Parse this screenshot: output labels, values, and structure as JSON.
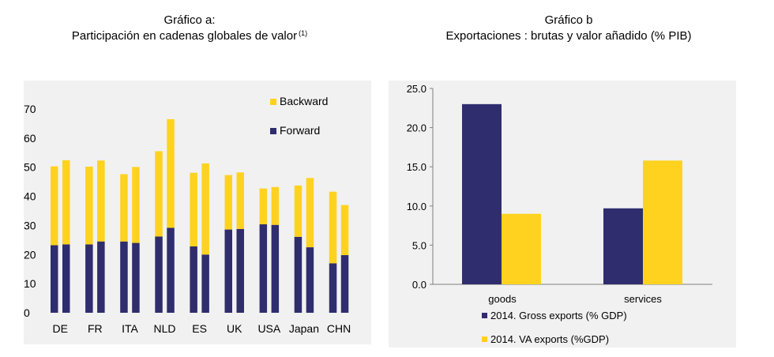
{
  "chart_a": {
    "title_line1": "Gráfico a:",
    "title_line2": "Participación en cadenas globales de valor",
    "title_note": "(1)"
  },
  "chart_b": {
    "title_line1": "Gráfico b",
    "title_line2": "Exportaciones : brutas y valor añadido (% PIB)"
  },
  "chart_data": [
    {
      "type": "bar",
      "stacked": true,
      "categories": [
        "DE",
        "FR",
        "ITA",
        "NLD",
        "ES",
        "UK",
        "USA",
        "Japan",
        "CHN"
      ],
      "bars_per_category": 2,
      "series": [
        {
          "name": "Forward",
          "color": "#2f2d6e",
          "values": [
            [
              23.2,
              23.5
            ],
            [
              23.5,
              24.5
            ],
            [
              24.5,
              24
            ],
            [
              26.2,
              29.2
            ],
            [
              22.8,
              20
            ],
            [
              28.6,
              28.8
            ],
            [
              30.4,
              30.2
            ],
            [
              26.1,
              22.5
            ],
            [
              17,
              19.8
            ]
          ]
        },
        {
          "name": "Backward",
          "color": "#ffd21f",
          "values": [
            [
              27.1,
              28.9
            ],
            [
              26.7,
              27.8
            ],
            [
              23.1,
              26.1
            ],
            [
              29.3,
              37.3
            ],
            [
              25.3,
              31.3
            ],
            [
              18.7,
              19.4
            ],
            [
              12.3,
              13
            ],
            [
              17.6,
              23.8
            ],
            [
              24.6,
              17.2
            ]
          ]
        }
      ],
      "ylim": [
        0,
        70
      ],
      "yticks": [
        0,
        10,
        20,
        30,
        40,
        50,
        60,
        70
      ],
      "xlabel": "",
      "ylabel": "",
      "legend_position": "top-right",
      "grid": false
    },
    {
      "type": "bar",
      "categories": [
        "goods",
        "services"
      ],
      "series": [
        {
          "name": "2014. Gross exports (% GDP)",
          "color": "#2f2d6e",
          "values": [
            23.0,
            9.7
          ]
        },
        {
          "name": "2014. VA exports (%GDP)",
          "color": "#ffd21f",
          "values": [
            9.0,
            15.8
          ]
        }
      ],
      "ylim": [
        0,
        25
      ],
      "yticks": [
        "0.0",
        "5.0",
        "10.0",
        "15.0",
        "20.0",
        "25.0"
      ],
      "xlabel": "",
      "ylabel": "",
      "legend_position": "bottom",
      "grid": false
    }
  ]
}
